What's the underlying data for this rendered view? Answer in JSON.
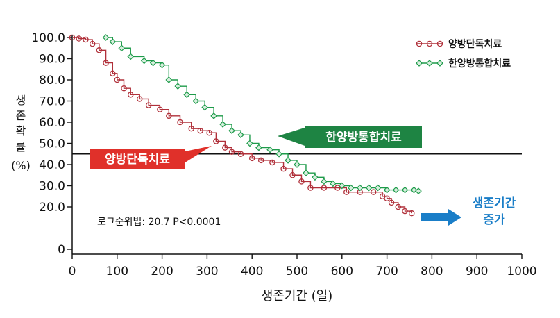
{
  "chart_data": {
    "type": "line",
    "subtype": "kaplan-meier step curve",
    "xlabel": "생존기간 (일)",
    "ylabel_chars": [
      "생",
      "존",
      "확",
      "률",
      "(%)"
    ],
    "xlim": [
      0,
      1000
    ],
    "ylim": [
      0,
      100
    ],
    "x_ticks": [
      0,
      100,
      200,
      300,
      400,
      500,
      600,
      700,
      800,
      900,
      1000
    ],
    "x_tick_labels": [
      "0",
      "100",
      "200",
      "300",
      "400",
      "500",
      "600",
      "700",
      "800",
      "900",
      "1000"
    ],
    "y_ticks": [
      0,
      20,
      30,
      40,
      50,
      60,
      70,
      80,
      90,
      100
    ],
    "y_tick_labels": [
      "0",
      "20.0",
      "30.0",
      "40.0",
      "50.0",
      "60.0",
      "70.0",
      "80.0",
      "90.0",
      "100.0"
    ],
    "reference_line_y": 45,
    "legend_position": "top-right",
    "series": [
      {
        "name": "양방단독치료",
        "color": "#b0303a",
        "points": [
          [
            0,
            100
          ],
          [
            15,
            99.5
          ],
          [
            30,
            99
          ],
          [
            45,
            97
          ],
          [
            60,
            94
          ],
          [
            75,
            88
          ],
          [
            90,
            83
          ],
          [
            100,
            80
          ],
          [
            115,
            76
          ],
          [
            130,
            73
          ],
          [
            150,
            71
          ],
          [
            170,
            68
          ],
          [
            195,
            66
          ],
          [
            215,
            63
          ],
          [
            240,
            60
          ],
          [
            265,
            57
          ],
          [
            285,
            56
          ],
          [
            305,
            55
          ],
          [
            320,
            51
          ],
          [
            340,
            48
          ],
          [
            355,
            46
          ],
          [
            375,
            45
          ],
          [
            400,
            43
          ],
          [
            420,
            42
          ],
          [
            445,
            41
          ],
          [
            470,
            38
          ],
          [
            490,
            35
          ],
          [
            510,
            32
          ],
          [
            530,
            29
          ],
          [
            560,
            29
          ],
          [
            590,
            29
          ],
          [
            610,
            27
          ],
          [
            640,
            27
          ],
          [
            670,
            27
          ],
          [
            690,
            25
          ],
          [
            700,
            24
          ],
          [
            710,
            22
          ],
          [
            725,
            20
          ],
          [
            740,
            18
          ],
          [
            755,
            17
          ]
        ]
      },
      {
        "name": "한양방통합치료",
        "color": "#1e9b4a",
        "points": [
          [
            75,
            100
          ],
          [
            90,
            98
          ],
          [
            110,
            95
          ],
          [
            130,
            91
          ],
          [
            160,
            89
          ],
          [
            180,
            88
          ],
          [
            200,
            87
          ],
          [
            215,
            80
          ],
          [
            235,
            77
          ],
          [
            255,
            73
          ],
          [
            275,
            70
          ],
          [
            295,
            67
          ],
          [
            315,
            63
          ],
          [
            335,
            59
          ],
          [
            355,
            56
          ],
          [
            375,
            54
          ],
          [
            395,
            50
          ],
          [
            415,
            48
          ],
          [
            440,
            47
          ],
          [
            460,
            45
          ],
          [
            480,
            42
          ],
          [
            500,
            40
          ],
          [
            520,
            36
          ],
          [
            540,
            34
          ],
          [
            560,
            32
          ],
          [
            580,
            31
          ],
          [
            600,
            30
          ],
          [
            620,
            29
          ],
          [
            640,
            29
          ],
          [
            660,
            29
          ],
          [
            680,
            29
          ],
          [
            700,
            28
          ],
          [
            720,
            28
          ],
          [
            740,
            28
          ],
          [
            760,
            28
          ],
          [
            770,
            27.5
          ]
        ]
      }
    ]
  },
  "callouts": {
    "conventional": "양방단독치료",
    "integrative": "한양방통합치료"
  },
  "stat_text": "로그순위법: 20.7 P<0.0001",
  "conclusion": {
    "line1": "생존기간",
    "line2": "증가",
    "arrow_color": "#1a7ec8"
  }
}
